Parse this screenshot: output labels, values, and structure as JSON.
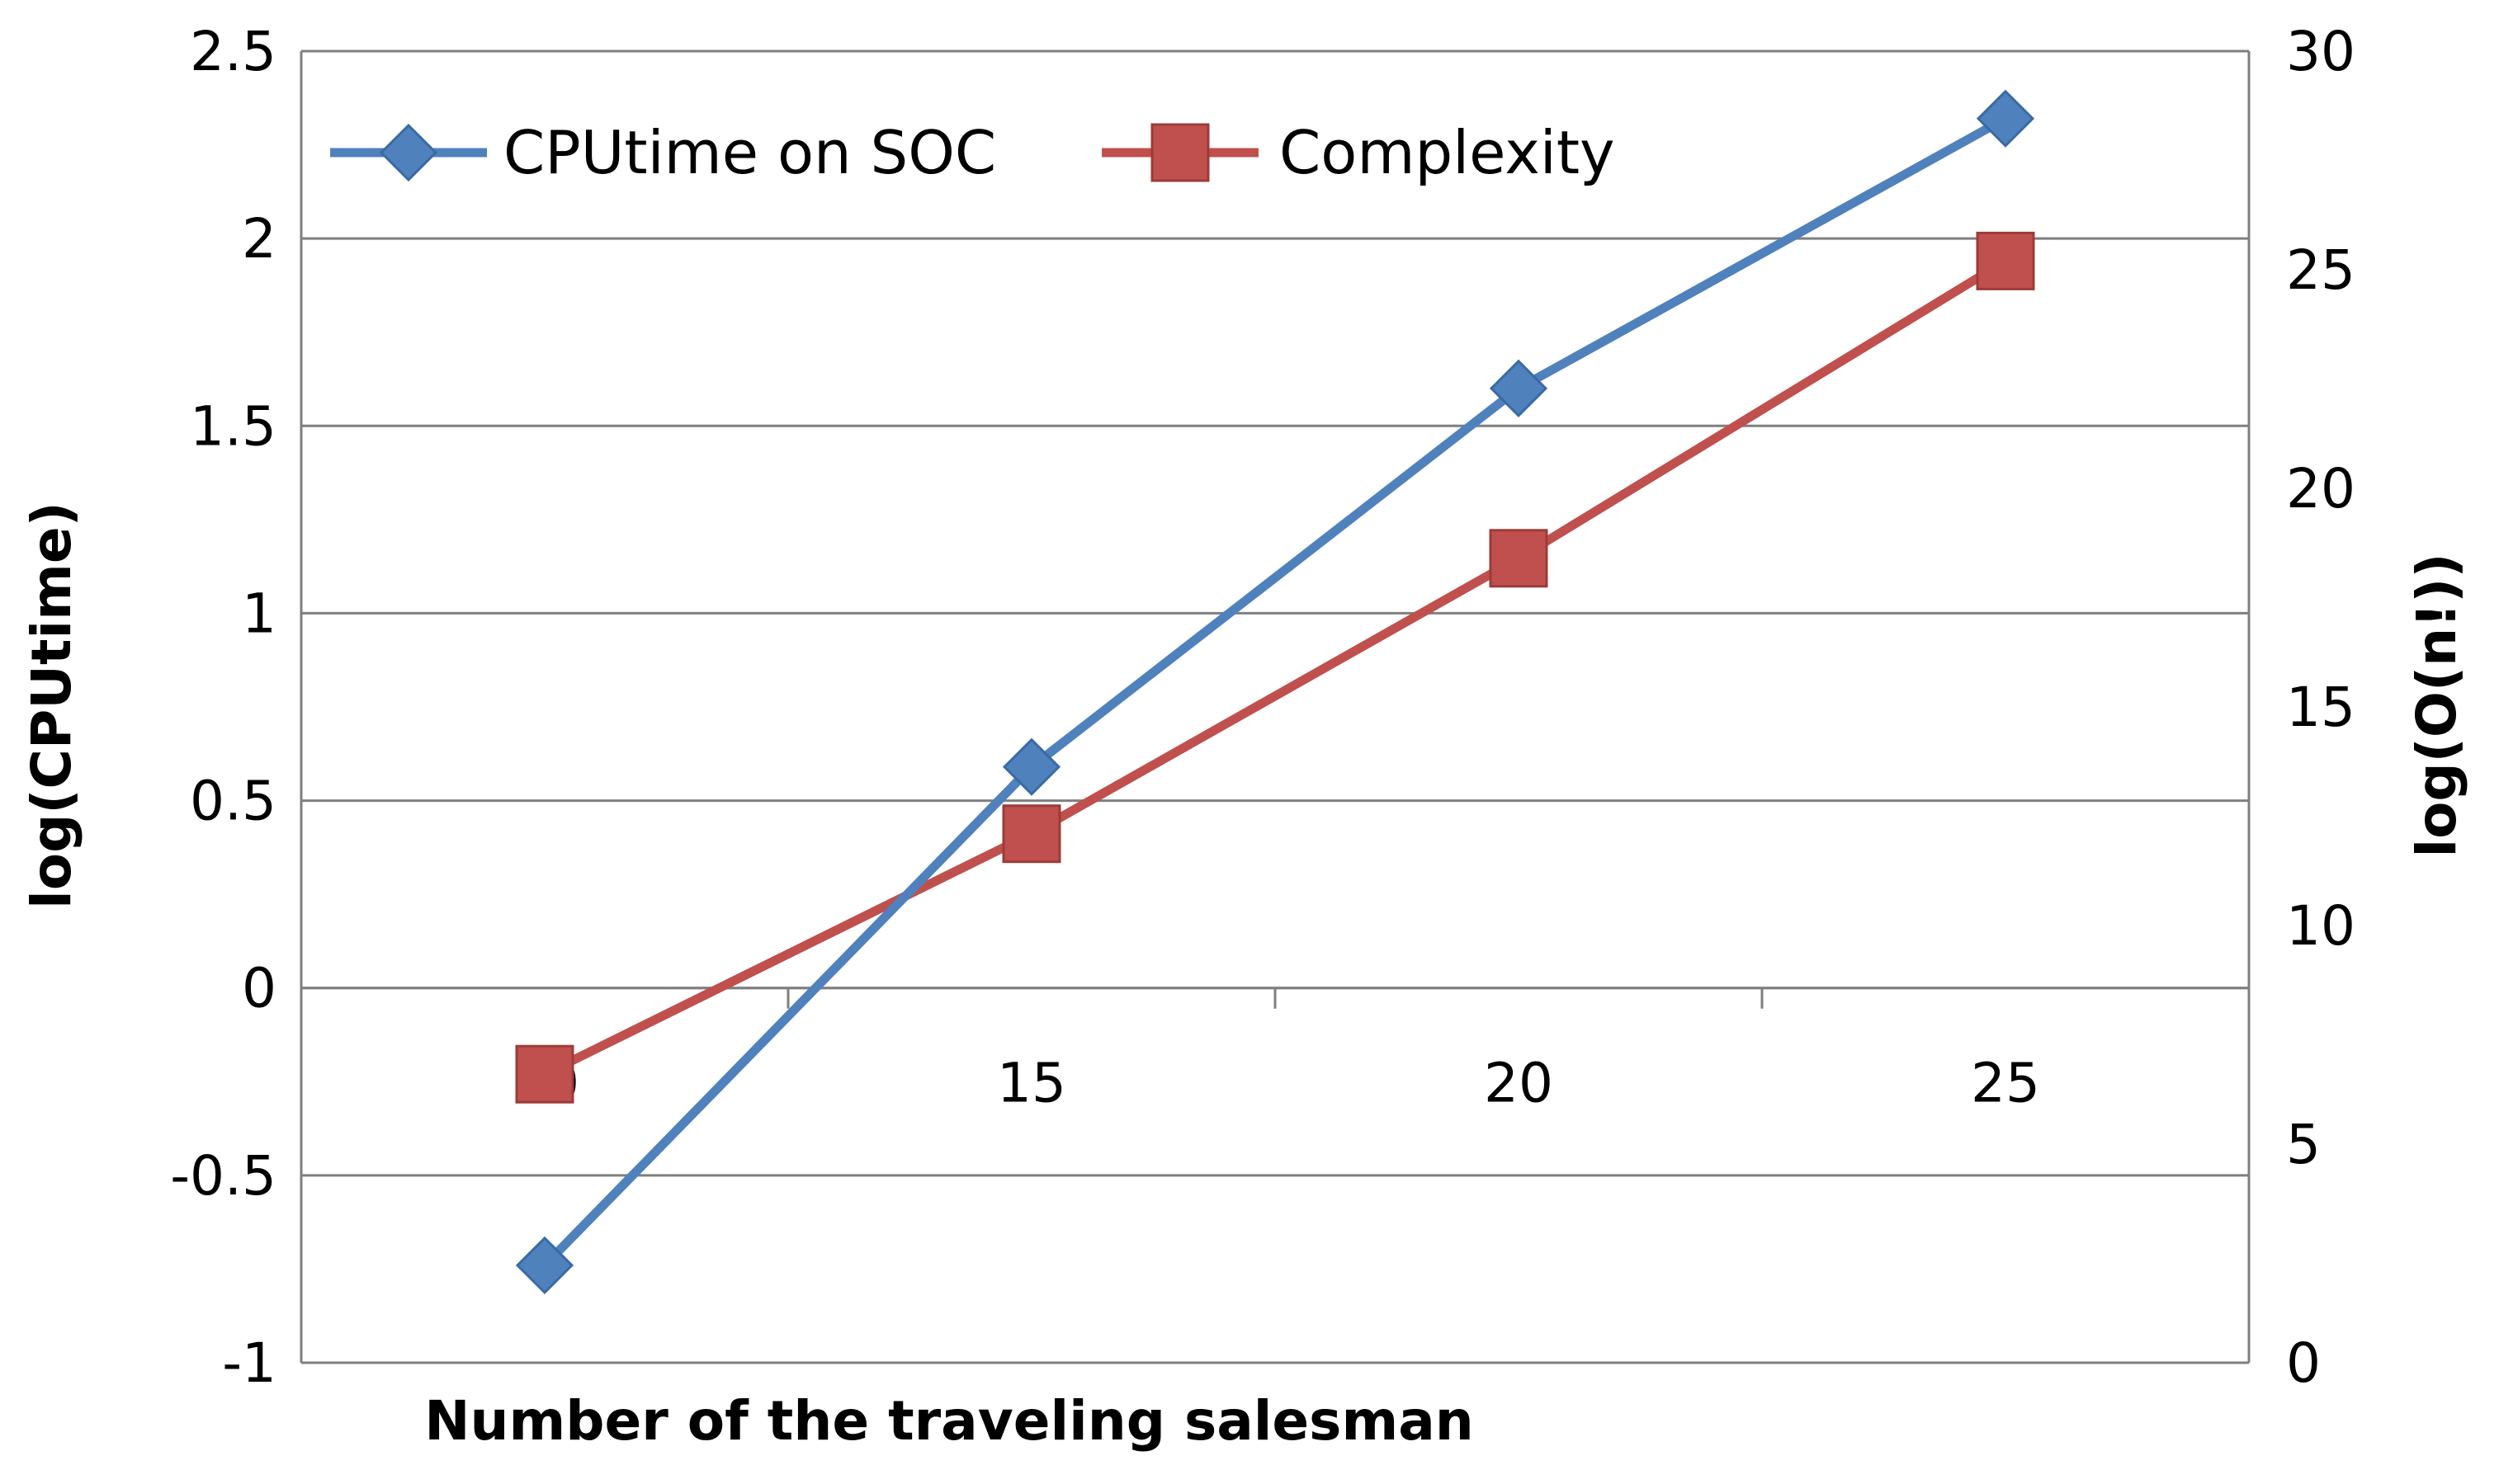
{
  "chart_data": {
    "type": "line",
    "x": [
      10,
      15,
      20,
      25
    ],
    "x_ticks": [
      "10",
      "15",
      "20",
      "25"
    ],
    "xlabel": "Number of the traveling salesman",
    "ylabel": "log(CPUtime)",
    "y2label": "log(O(n!))",
    "ylim": [
      -1,
      2.5
    ],
    "y2lim": [
      0,
      30
    ],
    "y_ticks": [
      "2.5",
      "2",
      "1.5",
      "1",
      "0.5",
      "0",
      "-0.5",
      "-1"
    ],
    "y2_ticks": [
      "30",
      "25",
      "20",
      "15",
      "10",
      "5",
      "0"
    ],
    "grid": true,
    "legend_position": "top-left",
    "series": [
      {
        "name": "CPUtime on SOC",
        "axis": "left",
        "values": [
          -0.74,
          0.59,
          1.6,
          2.32
        ],
        "color": "#4F81BD",
        "marker": "diamond"
      },
      {
        "name": "Complexity",
        "axis": "right",
        "values": [
          6.6,
          12.1,
          18.4,
          25.2
        ],
        "color": "#C0504D",
        "marker": "square"
      }
    ]
  }
}
